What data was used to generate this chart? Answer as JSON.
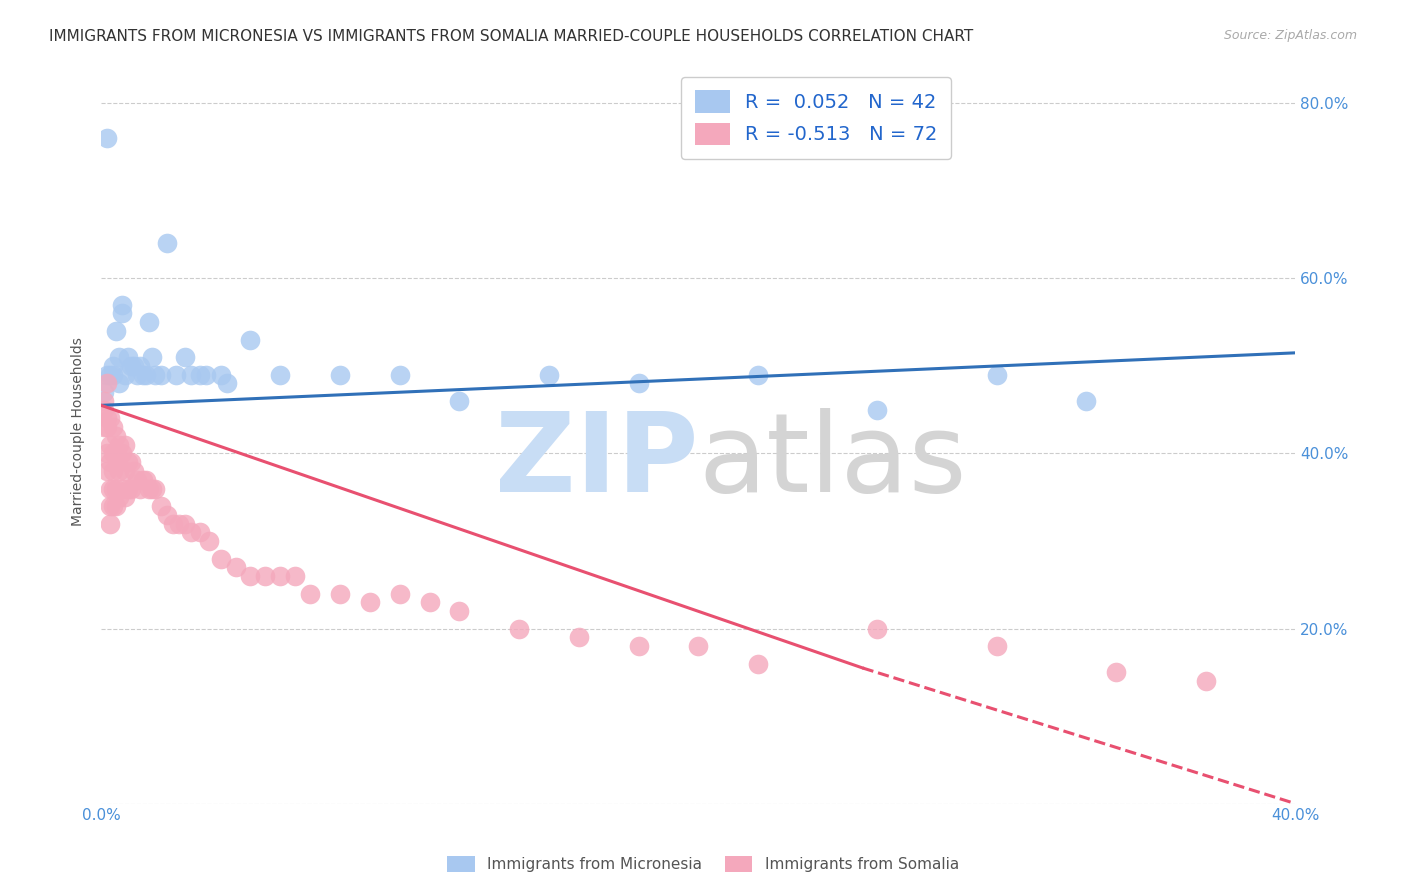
{
  "title": "IMMIGRANTS FROM MICRONESIA VS IMMIGRANTS FROM SOMALIA MARRIED-COUPLE HOUSEHOLDS CORRELATION CHART",
  "source": "Source: ZipAtlas.com",
  "ylabel": "Married-couple Households",
  "xlim": [
    0.0,
    0.4
  ],
  "ylim": [
    0.0,
    0.85
  ],
  "yticks": [
    0.0,
    0.2,
    0.4,
    0.6,
    0.8
  ],
  "xticks": [
    0.0,
    0.1,
    0.2,
    0.3,
    0.4
  ],
  "xtick_labels": [
    "0.0%",
    "",
    "",
    "",
    "40.0%"
  ],
  "ytick_labels_right": [
    "",
    "20.0%",
    "40.0%",
    "60.0%",
    "80.0%"
  ],
  "micronesia_color": "#a8c8f0",
  "somalia_color": "#f4a8bc",
  "micronesia_line_color": "#3070b8",
  "somalia_line_color": "#e85070",
  "R_micronesia": 0.052,
  "N_micronesia": 42,
  "R_somalia": -0.513,
  "N_somalia": 72,
  "legend_label_micronesia": "Immigrants from Micronesia",
  "legend_label_somalia": "Immigrants from Somalia",
  "mic_trend_x0": 0.0,
  "mic_trend_y0": 0.455,
  "mic_trend_x1": 0.4,
  "mic_trend_y1": 0.515,
  "som_trend_x0": 0.0,
  "som_trend_y0": 0.455,
  "som_trend_x1_solid": 0.255,
  "som_trend_y1_solid": 0.155,
  "som_trend_x1_dash": 0.4,
  "som_trend_y1_dash": 0.0,
  "micronesia_x": [
    0.001,
    0.002,
    0.002,
    0.003,
    0.004,
    0.004,
    0.005,
    0.006,
    0.006,
    0.007,
    0.007,
    0.008,
    0.009,
    0.01,
    0.011,
    0.012,
    0.013,
    0.014,
    0.015,
    0.016,
    0.017,
    0.018,
    0.02,
    0.022,
    0.025,
    0.028,
    0.03,
    0.033,
    0.035,
    0.04,
    0.042,
    0.05,
    0.06,
    0.08,
    0.1,
    0.12,
    0.15,
    0.18,
    0.22,
    0.26,
    0.3,
    0.33
  ],
  "micronesia_y": [
    0.47,
    0.76,
    0.49,
    0.49,
    0.49,
    0.5,
    0.54,
    0.51,
    0.48,
    0.56,
    0.57,
    0.49,
    0.51,
    0.5,
    0.5,
    0.49,
    0.5,
    0.49,
    0.49,
    0.55,
    0.51,
    0.49,
    0.49,
    0.64,
    0.49,
    0.51,
    0.49,
    0.49,
    0.49,
    0.49,
    0.48,
    0.53,
    0.49,
    0.49,
    0.49,
    0.46,
    0.49,
    0.48,
    0.49,
    0.45,
    0.49,
    0.46
  ],
  "somalia_x": [
    0.001,
    0.001,
    0.001,
    0.002,
    0.002,
    0.002,
    0.002,
    0.002,
    0.003,
    0.003,
    0.003,
    0.003,
    0.003,
    0.003,
    0.004,
    0.004,
    0.004,
    0.004,
    0.004,
    0.005,
    0.005,
    0.005,
    0.005,
    0.006,
    0.006,
    0.006,
    0.007,
    0.007,
    0.008,
    0.008,
    0.008,
    0.009,
    0.009,
    0.01,
    0.01,
    0.011,
    0.012,
    0.013,
    0.014,
    0.015,
    0.016,
    0.017,
    0.018,
    0.02,
    0.022,
    0.024,
    0.026,
    0.028,
    0.03,
    0.033,
    0.036,
    0.04,
    0.045,
    0.05,
    0.055,
    0.06,
    0.065,
    0.07,
    0.08,
    0.09,
    0.1,
    0.11,
    0.12,
    0.14,
    0.16,
    0.18,
    0.2,
    0.22,
    0.26,
    0.3,
    0.34,
    0.37
  ],
  "somalia_y": [
    0.46,
    0.45,
    0.43,
    0.48,
    0.44,
    0.43,
    0.4,
    0.38,
    0.44,
    0.41,
    0.39,
    0.36,
    0.34,
    0.32,
    0.43,
    0.4,
    0.38,
    0.36,
    0.34,
    0.42,
    0.4,
    0.36,
    0.34,
    0.41,
    0.38,
    0.35,
    0.4,
    0.36,
    0.41,
    0.38,
    0.35,
    0.39,
    0.36,
    0.39,
    0.36,
    0.38,
    0.37,
    0.36,
    0.37,
    0.37,
    0.36,
    0.36,
    0.36,
    0.34,
    0.33,
    0.32,
    0.32,
    0.32,
    0.31,
    0.31,
    0.3,
    0.28,
    0.27,
    0.26,
    0.26,
    0.26,
    0.26,
    0.24,
    0.24,
    0.23,
    0.24,
    0.23,
    0.22,
    0.2,
    0.19,
    0.18,
    0.18,
    0.16,
    0.2,
    0.18,
    0.15,
    0.14
  ],
  "background_color": "#ffffff",
  "grid_color": "#cccccc",
  "title_fontsize": 11,
  "label_fontsize": 10,
  "tick_fontsize": 11,
  "watermark_zip_color": "#c8ddf5",
  "watermark_atlas_color": "#d4d4d4"
}
